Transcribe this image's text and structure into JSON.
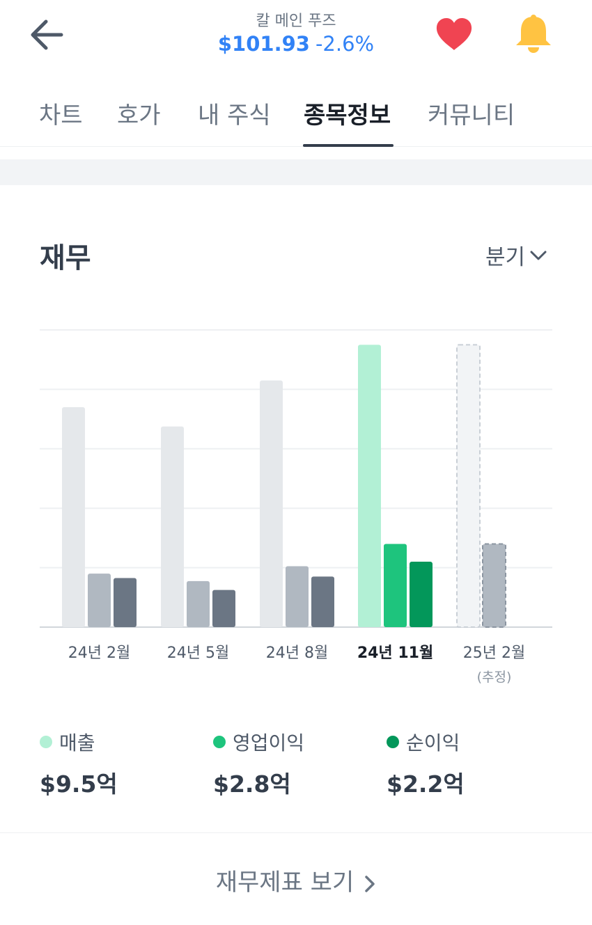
{
  "header": {
    "stock_name": "칼 메인 푸즈",
    "price": "$101.93",
    "change": "-2.6%",
    "icons": [
      "back-arrow-icon",
      "heart-icon",
      "bell-icon"
    ]
  },
  "tabs": [
    {
      "label": "차트",
      "active": false
    },
    {
      "label": "호가",
      "active": false
    },
    {
      "label": "내 주식",
      "active": false
    },
    {
      "label": "종목정보",
      "active": true
    },
    {
      "label": "커뮤니티",
      "active": false
    }
  ],
  "section": {
    "title": "재무",
    "period_label": "분기"
  },
  "chart_data": {
    "type": "bar",
    "categories": [
      "24년 2월",
      "24년 5월",
      "24년 8월",
      "24년 11월",
      "25년 2월"
    ],
    "category_notes": [
      "",
      "",
      "",
      "",
      "(추정)"
    ],
    "active_category": "24년 11월",
    "estimated_category": "25년 2월",
    "ylim": [
      0,
      10
    ],
    "grid": true,
    "series": [
      {
        "name": "매출",
        "values": [
          7.4,
          6.75,
          8.3,
          9.5,
          9.5
        ]
      },
      {
        "name": "영업이익",
        "values": [
          1.8,
          1.55,
          2.05,
          2.8,
          2.8
        ]
      },
      {
        "name": "순이익",
        "values": [
          1.65,
          1.25,
          1.7,
          2.2,
          null
        ]
      }
    ],
    "colors": {
      "inactive": [
        "#e5e8eb",
        "#b0b8c1",
        "#6b7684"
      ],
      "active": [
        "#b2f0d5",
        "#1ec47d",
        "#03975a"
      ],
      "estimate_fill": "#f2f4f6",
      "estimate_stroke": "#c9cfd6"
    }
  },
  "legend": [
    {
      "label": "매출",
      "value": "$9.5억",
      "color": "#b2f0d5"
    },
    {
      "label": "영업이익",
      "value": "$2.8억",
      "color": "#1ec47d"
    },
    {
      "label": "순이익",
      "value": "$2.2억",
      "color": "#03975a"
    }
  ],
  "footer": {
    "link_label": "재무제표 보기"
  }
}
